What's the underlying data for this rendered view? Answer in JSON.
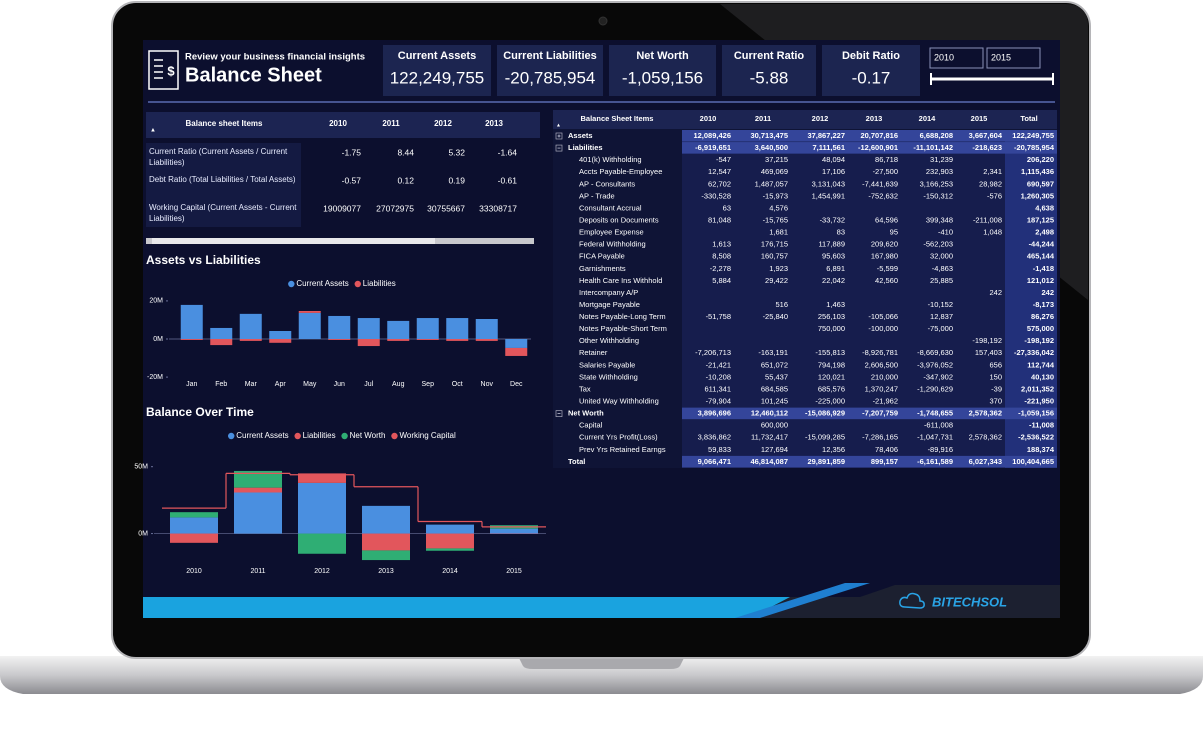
{
  "header": {
    "subtitle": "Review your business financial insights",
    "title": "Balance Sheet"
  },
  "kpis": [
    {
      "label": "Current Assets",
      "value": "122,249,755"
    },
    {
      "label": "Current Liabilities",
      "value": "-20,785,954"
    },
    {
      "label": "Net Worth",
      "value": "-1,059,156"
    },
    {
      "label": "Current Ratio",
      "value": "-5.88"
    },
    {
      "label": "Debit Ratio",
      "value": "-0.17"
    }
  ],
  "slicer": {
    "start": "2010",
    "end": "2015"
  },
  "ratio_table": {
    "header": [
      "Balance sheet Items",
      "2010",
      "2011",
      "2012",
      "2013"
    ],
    "rows": [
      {
        "label": "Current Ratio (Current Assets / Current Liabilities)",
        "values": [
          "-1.75",
          "8.44",
          "5.32",
          "-1.64"
        ]
      },
      {
        "label": "Debt Ratio (Total Liabilities / Total Assets)",
        "values": [
          "-0.57",
          "0.12",
          "0.19",
          "-0.61"
        ]
      },
      {
        "label": "Working Capital (Current Assets - Current Liabilities)",
        "values": [
          "19009077",
          "27072975",
          "30755667",
          "33308717"
        ]
      }
    ]
  },
  "chart_data": [
    {
      "type": "bar",
      "title": "Assets vs Liabilities",
      "stacked": true,
      "legend": "top",
      "categories": [
        "Jan",
        "Feb",
        "Mar",
        "Apr",
        "May",
        "Jun",
        "Jul",
        "Aug",
        "Sep",
        "Oct",
        "Nov",
        "Dec"
      ],
      "series": [
        {
          "name": "Current Assets",
          "color": "#4a8fe0",
          "values": [
            17.9,
            5.8,
            13.2,
            4.2,
            13.7,
            12.1,
            11,
            9.5,
            11,
            11,
            10.5,
            -4.7
          ]
        },
        {
          "name": "Liabilities",
          "color": "#e2565c",
          "values": [
            -0.5,
            -3.2,
            -1,
            -2,
            1,
            -0.5,
            -3.7,
            -1,
            -0.5,
            -1,
            -1,
            -4.2
          ]
        }
      ],
      "ylim": [
        -21,
        21
      ],
      "yticks": [
        {
          "value": 20,
          "label": "20M"
        },
        {
          "value": 0,
          "label": "0M"
        },
        {
          "value": -20,
          "label": "-20M"
        }
      ]
    },
    {
      "type": "bar",
      "title": "Balance Over Time",
      "stacked": true,
      "legend": "top",
      "categories": [
        "2010",
        "2011",
        "2012",
        "2013",
        "2014",
        "2015"
      ],
      "series": [
        {
          "name": "Current Assets",
          "color": "#4a8fe0",
          "values": [
            12.09,
            30.71,
            37.87,
            20.71,
            6.69,
            3.67
          ]
        },
        {
          "name": "Liabilities",
          "color": "#e2565c",
          "values": [
            -6.92,
            3.64,
            7.11,
            -12.6,
            -11.1,
            -0.22
          ]
        },
        {
          "name": "Net Worth",
          "color": "#2fae74",
          "values": [
            3.9,
            12.46,
            -15.09,
            -7.21,
            -1.75,
            2.58
          ]
        },
        {
          "name": "Working Capital",
          "color": "#e2565c",
          "type": "line",
          "values": [
            19,
            45,
            44,
            35,
            9,
            5
          ]
        }
      ],
      "ylim": [
        -22,
        55
      ],
      "yticks": [
        {
          "value": 50,
          "label": "50M"
        },
        {
          "value": 0,
          "label": "0M"
        }
      ]
    }
  ],
  "balance_table": {
    "header": [
      "Balance Sheet Items",
      "2010",
      "2011",
      "2012",
      "2013",
      "2014",
      "2015",
      "Total"
    ],
    "sections": [
      {
        "name": "Assets",
        "values": [
          "12,089,426",
          "30,713,475",
          "37,867,227",
          "20,707,816",
          "6,688,208",
          "3,667,604",
          "122,249,755"
        ]
      },
      {
        "name": "Liabilities",
        "values": [
          "-6,919,651",
          "3,640,500",
          "7,111,561",
          "-12,600,901",
          "-11,101,142",
          "-218,623",
          "-20,785,954"
        ],
        "rows": [
          {
            "label": "401(k) Withholding",
            "values": [
              "-547",
              "37,215",
              "48,094",
              "86,718",
              "31,239",
              null,
              "206,220"
            ]
          },
          {
            "label": "Accts Payable-Employee",
            "values": [
              "12,547",
              "469,069",
              "17,106",
              "-27,500",
              "232,903",
              "2,341",
              "1,115,436"
            ]
          },
          {
            "label": "AP - Consultants",
            "values": [
              "62,702",
              "1,487,057",
              "3,131,043",
              "-7,441,639",
              "3,166,253",
              "28,982",
              "690,597"
            ]
          },
          {
            "label": "AP - Trade",
            "values": [
              "-330,528",
              "-15,973",
              "1,454,991",
              "-752,632",
              "-150,312",
              "-576",
              "1,260,305"
            ]
          },
          {
            "label": "Consultant Accrual",
            "values": [
              "63",
              "4,576",
              null,
              null,
              null,
              null,
              "4,638"
            ]
          },
          {
            "label": "Deposits on Documents",
            "values": [
              "81,048",
              "-15,765",
              "-33,732",
              "64,596",
              "399,348",
              "-211,008",
              "187,125"
            ]
          },
          {
            "label": "Employee Expense",
            "values": [
              null,
              "1,681",
              "83",
              "95",
              "-410",
              "1,048",
              "2,498"
            ]
          },
          {
            "label": "Federal Withholding",
            "values": [
              "1,613",
              "176,715",
              "117,889",
              "209,620",
              "-562,203",
              null,
              "-44,244"
            ]
          },
          {
            "label": "FICA Payable",
            "values": [
              "8,508",
              "160,757",
              "95,603",
              "167,980",
              "32,000",
              null,
              "465,144"
            ]
          },
          {
            "label": "Garnishments",
            "values": [
              "-2,278",
              "1,923",
              "6,891",
              "-5,599",
              "-4,863",
              null,
              "-1,418"
            ]
          },
          {
            "label": "Health Care Ins Withhold",
            "values": [
              "5,884",
              "29,422",
              "22,042",
              "42,560",
              "25,885",
              null,
              "121,012"
            ]
          },
          {
            "label": "Intercompany A/P",
            "values": [
              null,
              null,
              null,
              null,
              null,
              "242",
              "242"
            ]
          },
          {
            "label": "Mortgage Payable",
            "values": [
              null,
              "516",
              "1,463",
              null,
              "-10,152",
              null,
              "-8,173"
            ]
          },
          {
            "label": "Notes Payable-Long Term",
            "values": [
              "-51,758",
              "-25,840",
              "256,103",
              "-105,066",
              "12,837",
              null,
              "86,276"
            ]
          },
          {
            "label": "Notes Payable-Short Term",
            "values": [
              null,
              null,
              "750,000",
              "-100,000",
              "-75,000",
              null,
              "575,000"
            ]
          },
          {
            "label": "Other Withholding",
            "values": [
              null,
              null,
              null,
              null,
              null,
              "-198,192",
              "-198,192"
            ]
          },
          {
            "label": "Retainer",
            "values": [
              "-7,206,713",
              "-163,191",
              "-155,813",
              "-8,926,781",
              "-8,669,630",
              "157,403",
              "-27,336,042"
            ]
          },
          {
            "label": "Salaries Payable",
            "values": [
              "-21,421",
              "651,072",
              "794,198",
              "2,606,500",
              "-3,976,052",
              "656",
              "112,744"
            ]
          },
          {
            "label": "State Withholding",
            "values": [
              "-10,208",
              "55,437",
              "120,021",
              "210,000",
              "-347,902",
              "150",
              "40,130"
            ]
          },
          {
            "label": "Tax",
            "values": [
              "611,341",
              "684,585",
              "685,576",
              "1,370,247",
              "-1,290,629",
              "-39",
              "2,011,352"
            ]
          },
          {
            "label": "United Way Withholding",
            "values": [
              "-79,904",
              "101,245",
              "-225,000",
              "-21,962",
              null,
              "370",
              "-221,950"
            ]
          }
        ]
      },
      {
        "name": "Net Worth",
        "values": [
          "3,896,696",
          "12,460,112",
          "-15,086,929",
          "-7,207,759",
          "-1,748,655",
          "2,578,362",
          "-1,059,156"
        ],
        "rows": [
          {
            "label": "Capital",
            "values": [
              null,
              "600,000",
              null,
              null,
              "-611,008",
              null,
              "-11,008"
            ]
          },
          {
            "label": "Current Yrs Profit(Loss)",
            "values": [
              "3,836,862",
              "11,732,417",
              "-15,099,285",
              "-7,286,165",
              "-1,047,731",
              "2,578,362",
              "-2,536,522"
            ]
          },
          {
            "label": "Prev Yrs Retained Earngs",
            "values": [
              "59,833",
              "127,694",
              "12,356",
              "78,406",
              "-89,916",
              null,
              "188,374"
            ]
          }
        ]
      }
    ],
    "total": {
      "label": "Total",
      "values": [
        "9,066,471",
        "46,814,087",
        "29,891,859",
        "899,157",
        "-6,161,589",
        "6,027,343",
        "100,404,665"
      ]
    }
  },
  "footer": {
    "brand": "BITECHSOL"
  }
}
